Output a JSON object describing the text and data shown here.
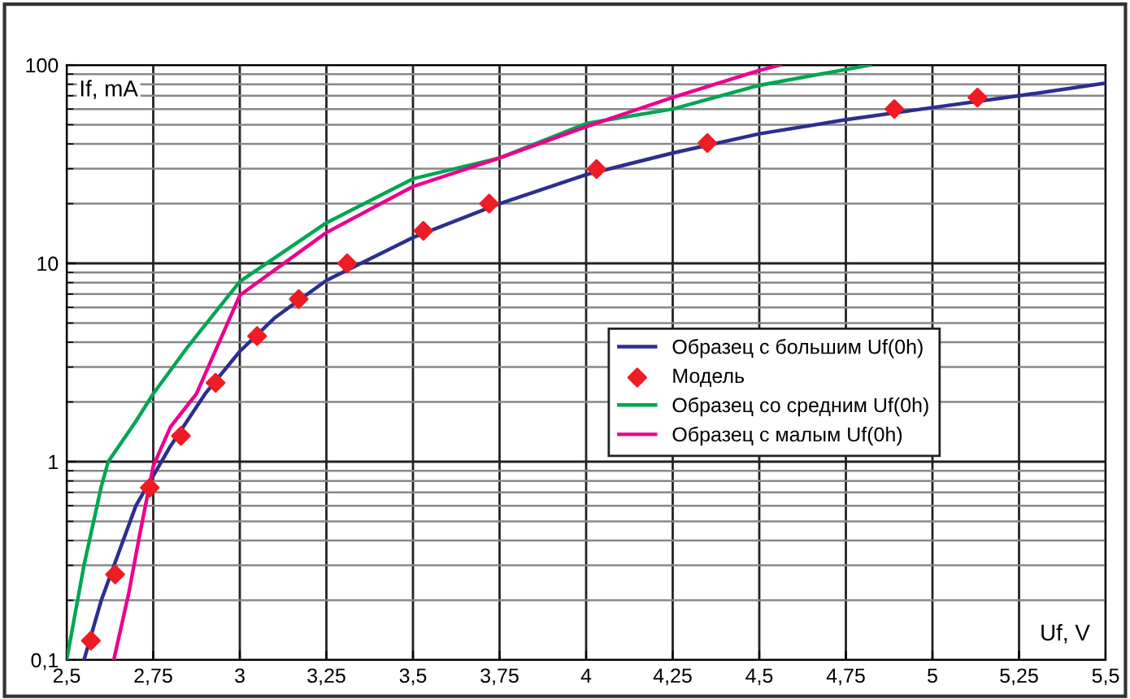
{
  "chart_data": {
    "type": "line",
    "xlabel": "Uf, V",
    "ylabel": "If, mA",
    "log": "y",
    "xlim": [
      2.5,
      5.5
    ],
    "xticks": [
      {
        "value": 2.5,
        "label": "2,5"
      },
      {
        "value": 2.75,
        "label": "2,75"
      },
      3,
      {
        "value": 3.25,
        "label": "3,25"
      },
      {
        "value": 3.5,
        "label": "3,5"
      },
      {
        "value": 3.75,
        "label": "3,75"
      },
      4,
      {
        "value": 4.25,
        "label": "4,25"
      },
      {
        "value": 4.5,
        "label": "4,5"
      },
      {
        "value": 4.75,
        "label": "4,75"
      },
      5,
      {
        "value": 5.25,
        "label": "5,25"
      },
      {
        "value": 5.5,
        "label": "5,5"
      }
    ],
    "ylim": [
      0.1,
      100
    ],
    "yticks": [
      {
        "value": 0.1,
        "label": "0,1"
      },
      1,
      10,
      100
    ],
    "grid": true,
    "legend": "center right",
    "marker": "none",
    "line_style": "solid",
    "series": [
      {
        "name": "Образец с большим Uf(0h)",
        "color": "#2b2f8f",
        "x": [
          2.55,
          2.6,
          2.7,
          2.8,
          2.9,
          3.0,
          3.1,
          3.25,
          3.5,
          3.75,
          4.0,
          4.25,
          4.5,
          4.75,
          5.0,
          5.25,
          5.5
        ],
        "values": [
          0.1,
          0.2,
          0.6,
          1.2,
          2.2,
          3.6,
          5.3,
          8.2,
          13.5,
          20,
          28,
          36,
          45,
          53,
          61,
          70,
          81
        ]
      },
      {
        "name": "Модель",
        "type": "scatter",
        "marker": "diamond",
        "color": "#ee1c25",
        "x": [
          2.57,
          2.64,
          2.74,
          2.83,
          2.93,
          3.05,
          3.17,
          3.31,
          3.53,
          3.72,
          4.03,
          4.35,
          4.89,
          5.13
        ],
        "values": [
          0.125,
          0.27,
          0.74,
          1.35,
          2.5,
          4.3,
          6.6,
          10,
          14.6,
          20,
          29.9,
          40.4,
          60,
          68.6
        ]
      },
      {
        "name": "Образец со средним Uf(0h)",
        "color": "#00a651",
        "x": [
          2.5,
          2.55,
          2.6,
          2.62,
          2.7,
          2.75,
          2.85,
          3.0,
          3.25,
          3.5,
          3.75,
          4.0,
          4.25,
          4.5,
          4.82
        ],
        "values": [
          0.1,
          0.3,
          0.75,
          1,
          1.6,
          2.2,
          3.8,
          8.1,
          16,
          26.7,
          34,
          50.7,
          60,
          79,
          100
        ]
      },
      {
        "name": "Образец с малым Uf(0h)",
        "color": "#ec008c",
        "x": [
          2.636,
          2.68,
          2.71,
          2.75,
          2.8,
          2.875,
          3.0,
          3.25,
          3.5,
          3.75,
          4.0,
          4.25,
          4.5,
          4.56
        ],
        "values": [
          0.1,
          0.22,
          0.42,
          0.95,
          1.5,
          2.2,
          6.9,
          14.3,
          24.4,
          34,
          48.9,
          68.6,
          94,
          100
        ]
      }
    ]
  }
}
